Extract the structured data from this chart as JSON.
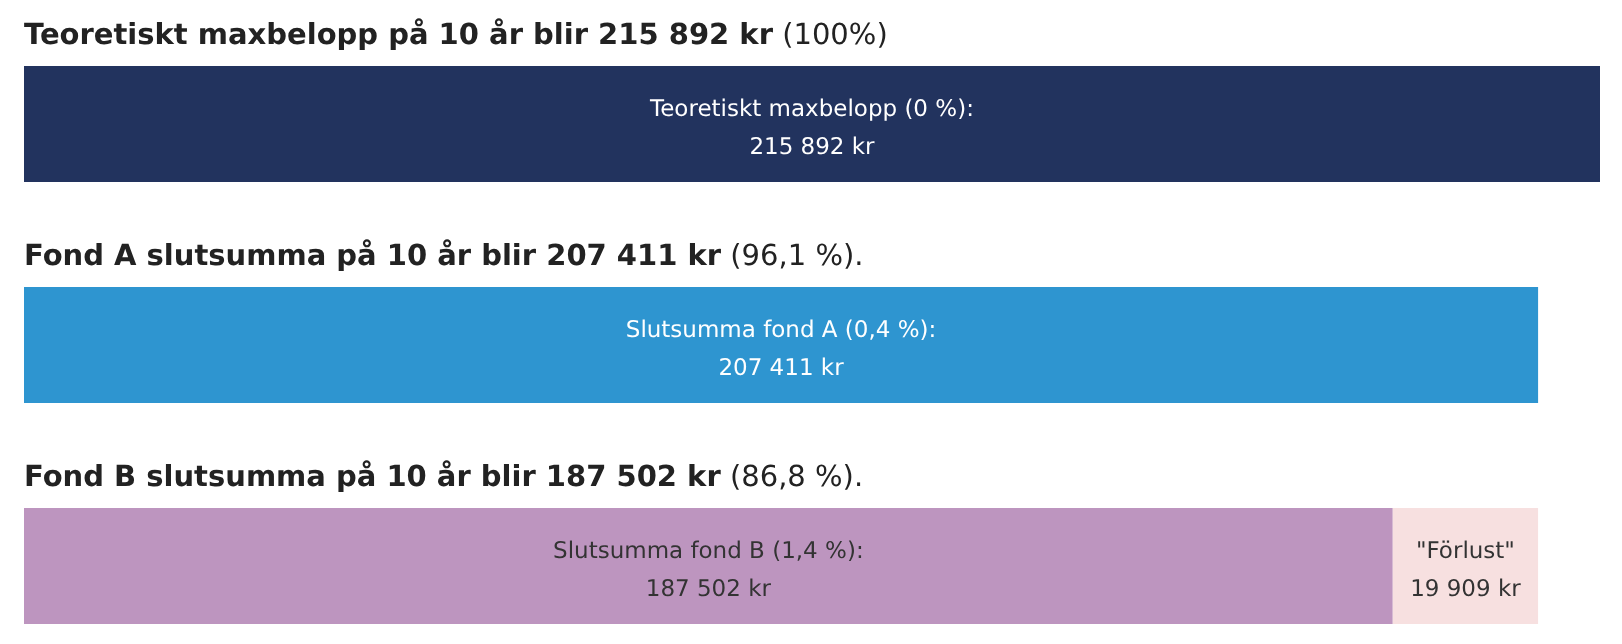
{
  "chart_data": {
    "type": "bar",
    "orientation": "horizontal",
    "stacked": true,
    "categories": [
      "Teoretiskt maxbelopp på 10 år blir 215 892 kr (100%)",
      "Fond A slutsumma på 10 år blir 207 411 kr (96,1 %).",
      "Fond B slutsumma på 10 år blir 187 502 kr (86,8 %)."
    ],
    "series": [
      {
        "name": "Teoretiskt maxbelopp (0 %):",
        "color": "#22335e",
        "values": [
          215892,
          null,
          null
        ],
        "value_labels": [
          "215 892 kr",
          null,
          null
        ]
      },
      {
        "name": "Slutsumma fond A (0,4 %):",
        "color": "#2e95d0",
        "values": [
          null,
          207411,
          null
        ],
        "value_labels": [
          null,
          "207 411 kr",
          null
        ]
      },
      {
        "name": "Slutsumma fond B (1,4 %):",
        "color": "#bd95bf",
        "values": [
          null,
          null,
          187502
        ],
        "value_labels": [
          null,
          null,
          "187 502 kr"
        ]
      },
      {
        "name": "\"Förlust\"",
        "color": "#f7e0e0",
        "values": [
          null,
          null,
          19909
        ],
        "value_labels": [
          null,
          null,
          "19 909 kr"
        ]
      }
    ]
  }
}
